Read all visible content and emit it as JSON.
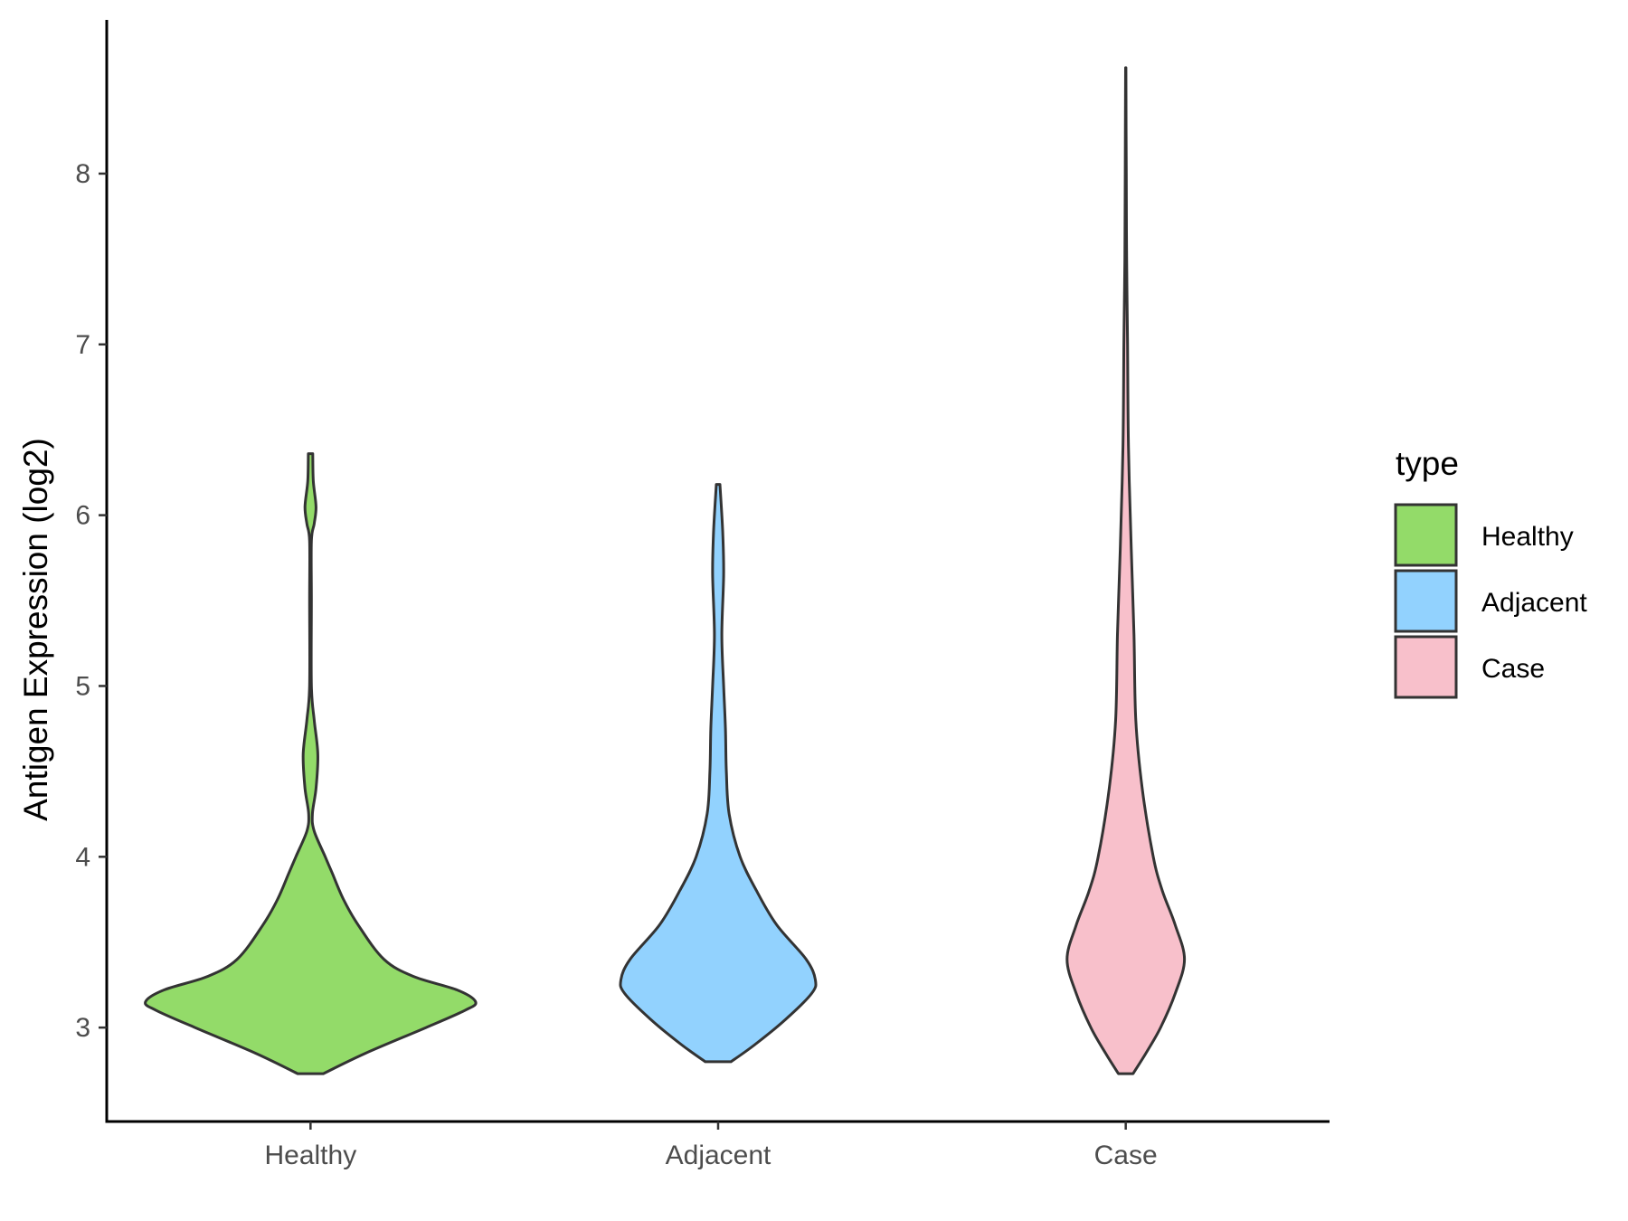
{
  "chart_data": {
    "type": "violin",
    "title": "",
    "xlabel": "",
    "ylabel": "Antigen Expression (log2)",
    "ylim": [
      2.45,
      8.9
    ],
    "yticks": [
      3,
      4,
      5,
      6,
      7,
      8
    ],
    "grid": false,
    "legend_position": "right",
    "legend_title": "type",
    "categories": [
      "Healthy",
      "Adjacent",
      "Case"
    ],
    "series": [
      {
        "name": "Healthy",
        "color": "#93db69",
        "min": 2.73,
        "max": 6.36,
        "density": [
          [
            2.73,
            0.07
          ],
          [
            2.85,
            0.3
          ],
          [
            3.0,
            0.63
          ],
          [
            3.1,
            0.84
          ],
          [
            3.15,
            0.9
          ],
          [
            3.22,
            0.8
          ],
          [
            3.3,
            0.56
          ],
          [
            3.4,
            0.4
          ],
          [
            3.6,
            0.26
          ],
          [
            3.75,
            0.18
          ],
          [
            3.9,
            0.12
          ],
          [
            4.0,
            0.08
          ],
          [
            4.15,
            0.02
          ],
          [
            4.25,
            0.01
          ],
          [
            4.4,
            0.03
          ],
          [
            4.6,
            0.04
          ],
          [
            4.8,
            0.02
          ],
          [
            5.0,
            0.005
          ],
          [
            5.5,
            0.005
          ],
          [
            5.85,
            0.005
          ],
          [
            5.95,
            0.02
          ],
          [
            6.05,
            0.03
          ],
          [
            6.2,
            0.015
          ],
          [
            6.36,
            0.012
          ]
        ]
      },
      {
        "name": "Adjacent",
        "color": "#92d2fe",
        "min": 2.8,
        "max": 6.18,
        "density": [
          [
            2.8,
            0.07
          ],
          [
            2.9,
            0.2
          ],
          [
            3.05,
            0.37
          ],
          [
            3.2,
            0.51
          ],
          [
            3.28,
            0.53
          ],
          [
            3.4,
            0.48
          ],
          [
            3.6,
            0.32
          ],
          [
            3.8,
            0.21
          ],
          [
            4.0,
            0.12
          ],
          [
            4.25,
            0.06
          ],
          [
            4.5,
            0.045
          ],
          [
            4.75,
            0.04
          ],
          [
            5.0,
            0.03
          ],
          [
            5.3,
            0.02
          ],
          [
            5.65,
            0.03
          ],
          [
            5.9,
            0.025
          ],
          [
            6.18,
            0.01
          ]
        ]
      },
      {
        "name": "Case",
        "color": "#f8c0cb",
        "min": 2.73,
        "max": 8.62,
        "density": [
          [
            2.73,
            0.04
          ],
          [
            2.85,
            0.11
          ],
          [
            3.0,
            0.19
          ],
          [
            3.2,
            0.27
          ],
          [
            3.4,
            0.32
          ],
          [
            3.6,
            0.27
          ],
          [
            3.8,
            0.2
          ],
          [
            4.0,
            0.15
          ],
          [
            4.4,
            0.09
          ],
          [
            4.8,
            0.055
          ],
          [
            5.3,
            0.045
          ],
          [
            5.8,
            0.03
          ],
          [
            6.4,
            0.015
          ],
          [
            7.0,
            0.01
          ],
          [
            7.5,
            0.005
          ],
          [
            8.0,
            0.003
          ],
          [
            8.62,
            0.001
          ]
        ]
      }
    ]
  }
}
